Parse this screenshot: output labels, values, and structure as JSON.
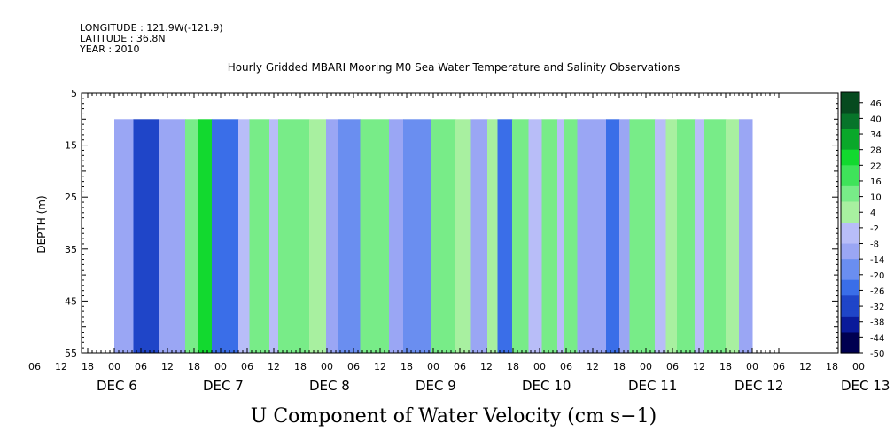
{
  "header": {
    "longitude": "LONGITUDE : 121.9W(-121.9)",
    "latitude": "LATITUDE : 36.8N",
    "year": "YEAR : 2010",
    "title": "Hourly Gridded MBARI Mooring M0 Sea Water Temperature and Salinity Observations"
  },
  "chart_data": {
    "type": "heatmap",
    "title": "Hourly Gridded MBARI Mooring M0 Sea Water Temperature and Salinity Observations",
    "xlabel": "U Component of Water Velocity (cm s−1)",
    "ylabel": "DEPTH (m)",
    "y_ticks": [
      "5",
      "15",
      "25",
      "35",
      "45",
      "55"
    ],
    "ylim": [
      55,
      5
    ],
    "y_data_range_m": [
      10,
      55
    ],
    "x_hour_ticks": [
      "06",
      "12",
      "18",
      "00",
      "06",
      "12",
      "18",
      "00",
      "06",
      "12",
      "18",
      "00",
      "06",
      "12",
      "18",
      "00",
      "06",
      "12",
      "18",
      "00",
      "06",
      "12",
      "18",
      "00",
      "06",
      "12",
      "18",
      "00",
      "06",
      "12",
      "18",
      "00"
    ],
    "x_day_labels": [
      "DEC  6",
      "DEC  7",
      "DEC  8",
      "DEC  9",
      "DEC 10",
      "DEC 11",
      "DEC 12",
      "DEC 13"
    ],
    "x_range_hours": [
      0,
      144
    ],
    "colorbar_labels": [
      "46",
      "40",
      "34",
      "28",
      "22",
      "16",
      "10",
      "4",
      "-2",
      "-8",
      "-14",
      "-20",
      "-26",
      "-32",
      "-38",
      "-44",
      "-50"
    ],
    "colorbar_range": [
      -50,
      50
    ],
    "color_scale": [
      "#000050",
      "#0a1a9a",
      "#1f45c8",
      "#3a6ee8",
      "#6a8ef0",
      "#9aa6f4",
      "#b8bdf8",
      "#a8f0a0",
      "#78ec88",
      "#3fe35a",
      "#12d92f",
      "#0aa82a",
      "#07742a",
      "#064a1f"
    ],
    "columns": [
      {
        "start_h": 0.0,
        "end_h": 4.3,
        "value": -12
      },
      {
        "start_h": 4.3,
        "end_h": 10.0,
        "value": -30
      },
      {
        "start_h": 10.0,
        "end_h": 16.0,
        "value": -14
      },
      {
        "start_h": 16.0,
        "end_h": 19.0,
        "value": 8
      },
      {
        "start_h": 19.0,
        "end_h": 22.0,
        "value": 24
      },
      {
        "start_h": 22.0,
        "end_h": 28.0,
        "value": -22
      },
      {
        "start_h": 28.0,
        "end_h": 30.5,
        "value": -6
      },
      {
        "start_h": 30.5,
        "end_h": 35.0,
        "value": 10
      },
      {
        "start_h": 35.0,
        "end_h": 37.0,
        "value": -2
      },
      {
        "start_h": 37.0,
        "end_h": 44.0,
        "value": 12
      },
      {
        "start_h": 44.0,
        "end_h": 47.8,
        "value": 2
      },
      {
        "start_h": 47.8,
        "end_h": 50.5,
        "value": -8
      },
      {
        "start_h": 50.5,
        "end_h": 55.5,
        "value": -18
      },
      {
        "start_h": 55.5,
        "end_h": 62.0,
        "value": 8
      },
      {
        "start_h": 62.0,
        "end_h": 65.2,
        "value": -10
      },
      {
        "start_h": 65.2,
        "end_h": 71.5,
        "value": -20
      },
      {
        "start_h": 71.5,
        "end_h": 77.0,
        "value": 12
      },
      {
        "start_h": 77.0,
        "end_h": 80.5,
        "value": 4
      },
      {
        "start_h": 80.5,
        "end_h": 84.2,
        "value": -10
      },
      {
        "start_h": 84.2,
        "end_h": 86.5,
        "value": 4
      },
      {
        "start_h": 86.5,
        "end_h": 89.8,
        "value": -22
      },
      {
        "start_h": 89.8,
        "end_h": 93.5,
        "value": 14
      },
      {
        "start_h": 93.5,
        "end_h": 96.5,
        "value": -2
      },
      {
        "start_h": 96.5,
        "end_h": 100.0,
        "value": 14
      },
      {
        "start_h": 100.0,
        "end_h": 101.5,
        "value": -2
      },
      {
        "start_h": 101.5,
        "end_h": 104.5,
        "value": 12
      },
      {
        "start_h": 104.5,
        "end_h": 111.0,
        "value": -14
      },
      {
        "start_h": 111.0,
        "end_h": 114.0,
        "value": -26
      },
      {
        "start_h": 114.0,
        "end_h": 116.3,
        "value": -10
      },
      {
        "start_h": 116.3,
        "end_h": 122.0,
        "value": 10
      },
      {
        "start_h": 122.0,
        "end_h": 124.5,
        "value": -6
      },
      {
        "start_h": 124.5,
        "end_h": 127.0,
        "value": 4
      },
      {
        "start_h": 127.0,
        "end_h": 131.0,
        "value": 14
      },
      {
        "start_h": 131.0,
        "end_h": 133.0,
        "value": -2
      },
      {
        "start_h": 133.0,
        "end_h": 138.0,
        "value": 14
      },
      {
        "start_h": 138.0,
        "end_h": 141.0,
        "value": 4
      },
      {
        "start_h": 141.0,
        "end_h": 144.0,
        "value": -14
      }
    ],
    "grid": false
  }
}
